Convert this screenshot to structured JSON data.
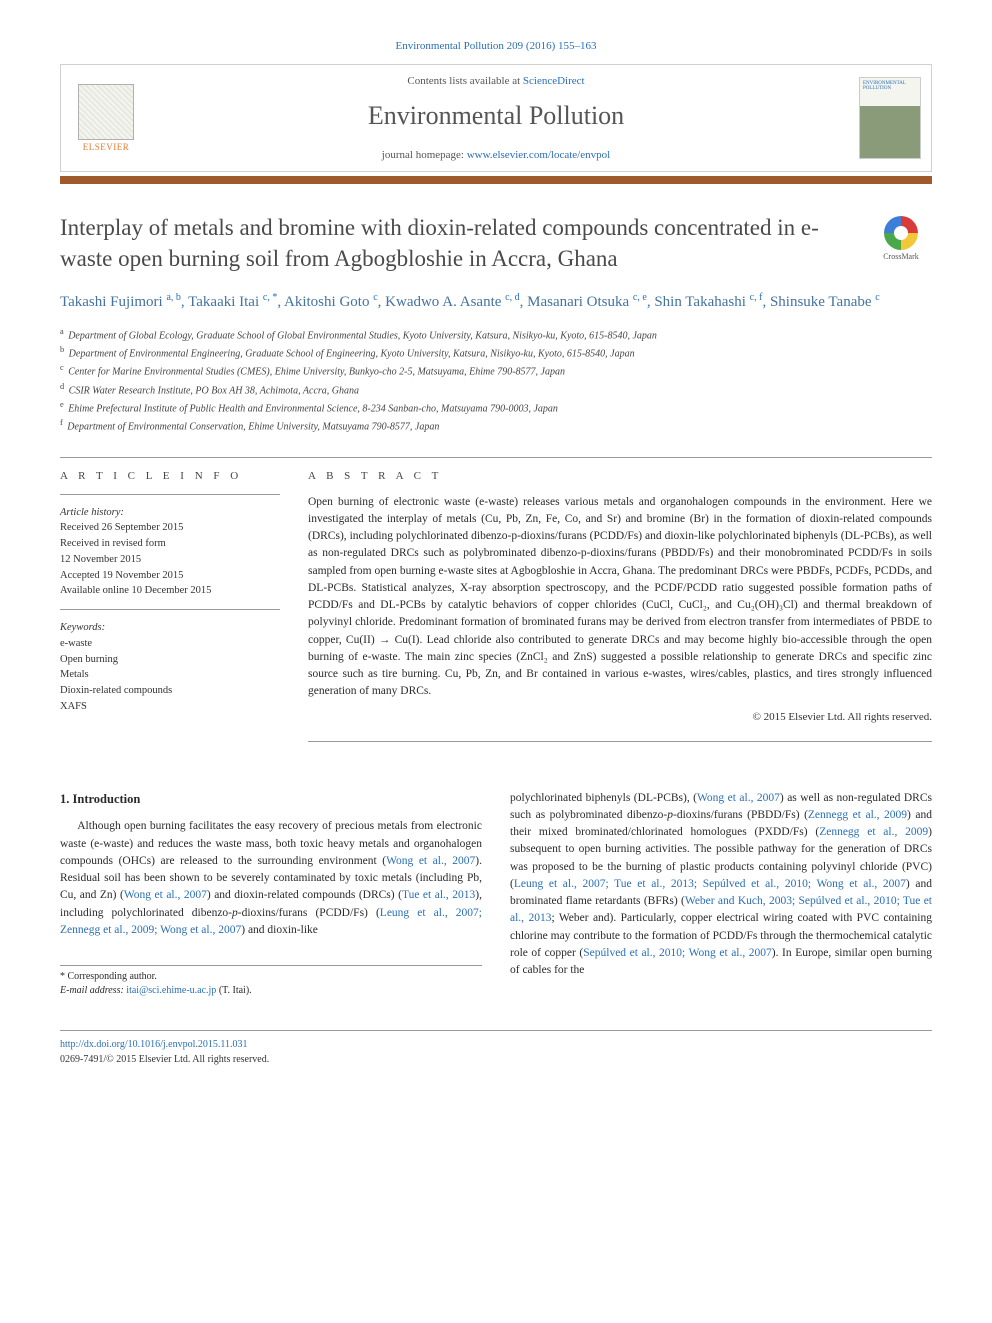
{
  "colors": {
    "accent_bar": "#9e5a2b",
    "link": "#2a6fb5",
    "author": "#44739e",
    "heading_gray": "#4a4a4a",
    "elsevier_orange": "#e77c31"
  },
  "citation": "Environmental Pollution 209 (2016) 155–163",
  "header": {
    "contents_prefix": "Contents lists available at ",
    "contents_link": "ScienceDirect",
    "journal_name": "Environmental Pollution",
    "homepage_prefix": "journal homepage: ",
    "homepage_link": "www.elsevier.com/locate/envpol",
    "publisher_name": "ELSEVIER",
    "cover_label": "ENVIRONMENTAL POLLUTION"
  },
  "crossmark_label": "CrossMark",
  "title": "Interplay of metals and bromine with dioxin-related compounds concentrated in e-waste open burning soil from Agbogbloshie in Accra, Ghana",
  "authors_html": "Takashi Fujimori <sup class='sup-link'>a, b</sup>, Takaaki Itai <sup class='sup-link'>c, *</sup>, Akitoshi Goto <sup class='sup-link'>c</sup>, Kwadwo A. Asante <sup class='sup-link'>c, d</sup>, Masanari Otsuka <sup class='sup-link'>c, e</sup>, Shin Takahashi <sup class='sup-link'>c, f</sup>, Shinsuke Tanabe <sup class='sup-link'>c</sup>",
  "affiliations": [
    {
      "s": "a",
      "t": "Department of Global Ecology, Graduate School of Global Environmental Studies, Kyoto University, Katsura, Nisikyo-ku, Kyoto, 615-8540, Japan"
    },
    {
      "s": "b",
      "t": "Department of Environmental Engineering, Graduate School of Engineering, Kyoto University, Katsura, Nisikyo-ku, Kyoto, 615-8540, Japan"
    },
    {
      "s": "c",
      "t": "Center for Marine Environmental Studies (CMES), Ehime University, Bunkyo-cho 2-5, Matsuyama, Ehime 790-8577, Japan"
    },
    {
      "s": "d",
      "t": "CSIR Water Research Institute, PO Box AH 38, Achimota, Accra, Ghana"
    },
    {
      "s": "e",
      "t": "Ehime Prefectural Institute of Public Health and Environmental Science, 8-234 Sanban-cho, Matsuyama 790-0003, Japan"
    },
    {
      "s": "f",
      "t": "Department of Environmental Conservation, Ehime University, Matsuyama 790-8577, Japan"
    }
  ],
  "info_label": "A R T I C L E  I N F O",
  "abstract_label": "A B S T R A C T",
  "history": {
    "label": "Article history:",
    "lines": [
      "Received 26 September 2015",
      "Received in revised form",
      "12 November 2015",
      "Accepted 19 November 2015",
      "Available online 10 December 2015"
    ]
  },
  "keywords": {
    "label": "Keywords:",
    "items": [
      "e-waste",
      "Open burning",
      "Metals",
      "Dioxin-related compounds",
      "XAFS"
    ]
  },
  "abstract_text": "Open burning of electronic waste (e-waste) releases various metals and organohalogen compounds in the environment. Here we investigated the interplay of metals (Cu, Pb, Zn, Fe, Co, and Sr) and bromine (Br) in the formation of dioxin-related compounds (DRCs), including polychlorinated dibenzo-p-dioxins/furans (PCDD/Fs) and dioxin-like polychlorinated biphenyls (DL-PCBs), as well as non-regulated DRCs such as polybrominated dibenzo-p-dioxins/furans (PBDD/Fs) and their monobrominated PCDD/Fs in soils sampled from open burning e-waste sites at Agbogbloshie in Accra, Ghana. The predominant DRCs were PBDFs, PCDFs, PCDDs, and DL-PCBs. Statistical analyzes, X-ray absorption spectroscopy, and the PCDF/PCDD ratio suggested possible formation paths of PCDD/Fs and DL-PCBs by catalytic behaviors of copper chlorides (CuCl, CuCl₂, and Cu₂(OH)₃Cl) and thermal breakdown of polyvinyl chloride. Predominant formation of brominated furans may be derived from electron transfer from intermediates of PBDE to copper, Cu(II) → Cu(I). Lead chloride also contributed to generate DRCs and may become highly bio-accessible through the open burning of e-waste. The main zinc species (ZnCl₂ and ZnS) suggested a possible relationship to generate DRCs and specific zinc source such as tire burning. Cu, Pb, Zn, and Br contained in various e-wastes, wires/cables, plastics, and tires strongly influenced generation of many DRCs.",
  "abstract_copyright": "© 2015 Elsevier Ltd. All rights reserved.",
  "intro_heading": "1. Introduction",
  "intro_col1_html": "Although open burning facilitates the easy recovery of precious metals from electronic waste (e-waste) and reduces the waste mass, both toxic heavy metals and organohalogen compounds (OHCs) are released to the surrounding environment (<span class='ref-link'>Wong et al., 2007</span>). Residual soil has been shown to be severely contaminated by toxic metals (including Pb, Cu, and Zn) (<span class='ref-link'>Wong et al., 2007</span>) and dioxin-related compounds (DRCs) (<span class='ref-link'>Tue et al., 2013</span>), including polychlorinated dibenzo-<i>p</i>-dioxins/furans (PCDD/Fs) (<span class='ref-link'>Leung et al., 2007; Zennegg et al., 2009; Wong et al., 2007</span>) and dioxin-like",
  "intro_col2_html": "polychlorinated biphenyls (DL-PCBs), (<span class='ref-link'>Wong et al., 2007</span>) as well as non-regulated DRCs such as polybrominated dibenzo-<i>p</i>-dioxins/furans (PBDD/Fs) (<span class='ref-link'>Zennegg et al., 2009</span>) and their mixed brominated/chlorinated homologues (PXDD/Fs) (<span class='ref-link'>Zennegg et al., 2009</span>) subsequent to open burning activities. The possible pathway for the generation of DRCs was proposed to be the burning of plastic products containing polyvinyl chloride (PVC) (<span class='ref-link'>Leung et al., 2007; Tue et al., 2013; Sepúlved et al., 2010; Wong et al., 2007</span>) and brominated flame retardants (BFRs) (<span class='ref-link'>Weber and Kuch, 2003; Sepúlved et al., 2010; Tue et al., 2013</span>; Weber and). Particularly, copper electrical wiring coated with PVC containing chlorine may contribute to the formation of PCDD/Fs through the thermochemical catalytic role of copper (<span class='ref-link'>Sepúlved et al., 2010; Wong et al., 2007</span>). In Europe, similar open burning of cables for the",
  "corresponding": {
    "star": "* Corresponding author.",
    "email_label": "E-mail address:",
    "email": "itai@sci.ehime-u.ac.jp",
    "email_who": "(T. Itai)."
  },
  "footer": {
    "doi": "http://dx.doi.org/10.1016/j.envpol.2015.11.031",
    "issn_line": "0269-7491/© 2015 Elsevier Ltd. All rights reserved."
  }
}
